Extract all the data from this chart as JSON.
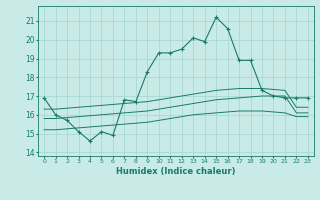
{
  "title": "",
  "xlabel": "Humidex (Indice chaleur)",
  "ylabel": "",
  "xlim": [
    -0.5,
    23.5
  ],
  "ylim": [
    13.8,
    21.8
  ],
  "yticks": [
    14,
    15,
    16,
    17,
    18,
    19,
    20,
    21
  ],
  "xticks": [
    0,
    1,
    2,
    3,
    4,
    5,
    6,
    7,
    8,
    9,
    10,
    11,
    12,
    13,
    14,
    15,
    16,
    17,
    18,
    19,
    20,
    21,
    22,
    23
  ],
  "background_color": "#c8ebe8",
  "grid_color": "#a8d8d4",
  "line_color": "#1a7a6a",
  "line1_x": [
    0,
    1,
    2,
    3,
    4,
    5,
    6,
    7,
    8,
    9,
    10,
    11,
    12,
    13,
    14,
    15,
    16,
    17,
    18,
    19,
    20,
    21,
    22,
    23
  ],
  "line1_y": [
    16.9,
    16.0,
    15.7,
    15.1,
    14.6,
    15.1,
    14.9,
    16.8,
    16.7,
    18.3,
    19.3,
    19.3,
    19.5,
    20.1,
    19.9,
    21.2,
    20.6,
    18.9,
    18.9,
    17.3,
    17.0,
    16.9,
    16.9,
    16.9
  ],
  "line2_x": [
    0,
    1,
    2,
    3,
    4,
    5,
    6,
    7,
    8,
    9,
    10,
    11,
    12,
    13,
    14,
    15,
    16,
    17,
    18,
    19,
    20,
    21,
    22,
    23
  ],
  "line2_y": [
    15.8,
    15.8,
    15.85,
    15.9,
    15.95,
    16.0,
    16.05,
    16.1,
    16.15,
    16.2,
    16.3,
    16.4,
    16.5,
    16.6,
    16.7,
    16.8,
    16.85,
    16.9,
    16.95,
    17.0,
    17.0,
    17.0,
    16.1,
    16.1
  ],
  "line3_x": [
    0,
    1,
    2,
    3,
    4,
    5,
    6,
    7,
    8,
    9,
    10,
    11,
    12,
    13,
    14,
    15,
    16,
    17,
    18,
    19,
    20,
    21,
    22,
    23
  ],
  "line3_y": [
    16.3,
    16.3,
    16.35,
    16.4,
    16.45,
    16.5,
    16.55,
    16.6,
    16.65,
    16.7,
    16.8,
    16.9,
    17.0,
    17.1,
    17.2,
    17.3,
    17.35,
    17.4,
    17.4,
    17.4,
    17.35,
    17.3,
    16.4,
    16.4
  ],
  "line4_x": [
    0,
    1,
    2,
    3,
    4,
    5,
    6,
    7,
    8,
    9,
    10,
    11,
    12,
    13,
    14,
    15,
    16,
    17,
    18,
    19,
    20,
    21,
    22,
    23
  ],
  "line4_y": [
    15.2,
    15.2,
    15.25,
    15.3,
    15.35,
    15.4,
    15.45,
    15.5,
    15.55,
    15.6,
    15.7,
    15.8,
    15.9,
    16.0,
    16.05,
    16.1,
    16.15,
    16.2,
    16.2,
    16.2,
    16.15,
    16.1,
    15.9,
    15.9
  ]
}
